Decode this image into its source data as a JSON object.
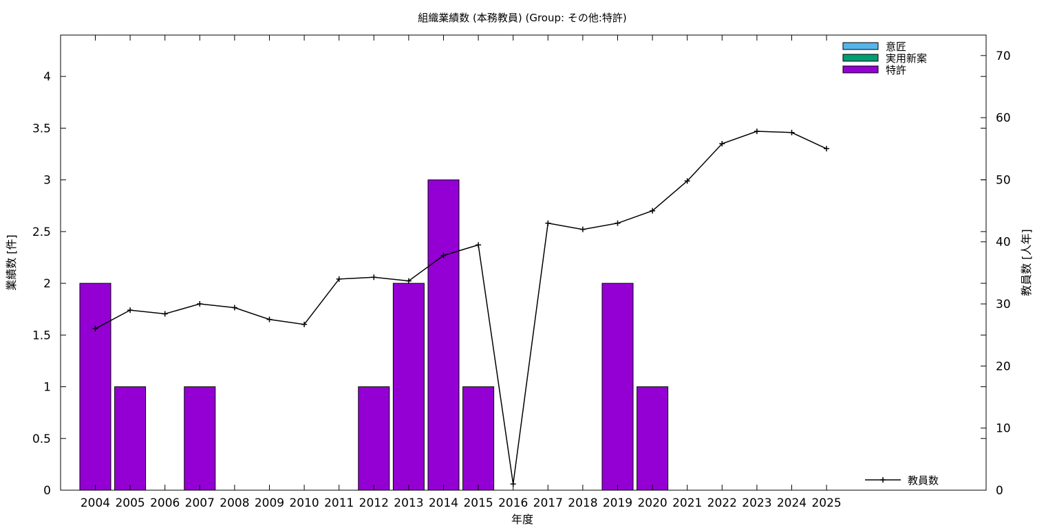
{
  "chart_data": {
    "type": "bar",
    "title": "組織業績数 (本務教員) (Group: その他:特許)",
    "xlabel": "年度",
    "ylabel": "業績数 [件]",
    "y2label": "教員数 [人年]",
    "categories": [
      "2004",
      "2005",
      "2006",
      "2007",
      "2008",
      "2009",
      "2010",
      "2011",
      "2012",
      "2013",
      "2014",
      "2015",
      "2016",
      "2017",
      "2018",
      "2019",
      "2020",
      "2021",
      "2022",
      "2023",
      "2024",
      "2025"
    ],
    "ylim": [
      0,
      4.4
    ],
    "yticks": [
      "0",
      "0.5",
      "1",
      "1.5",
      "2",
      "2.5",
      "3",
      "3.5",
      "4"
    ],
    "y2lim": [
      0,
      73.3
    ],
    "y2ticks": [
      "0",
      "10",
      "20",
      "30",
      "40",
      "50",
      "60",
      "70"
    ],
    "stacked": true,
    "series": [
      {
        "name": "意匠",
        "color": "#56b4e9",
        "values": [
          0,
          0,
          0,
          0,
          0,
          0,
          0,
          0,
          0,
          0,
          0,
          0,
          0,
          0,
          0,
          0,
          0,
          0,
          0,
          0,
          0,
          0
        ]
      },
      {
        "name": "実用新案",
        "color": "#009e73",
        "values": [
          0,
          0,
          0,
          0,
          0,
          0,
          0,
          0,
          0,
          0,
          0,
          0,
          0,
          0,
          0,
          0,
          0,
          0,
          0,
          0,
          0,
          0
        ]
      },
      {
        "name": "特許",
        "color": "#9400d3",
        "values": [
          2,
          1,
          0,
          1,
          0,
          0,
          0,
          0,
          1,
          2,
          3,
          1,
          0,
          0,
          0,
          2,
          1,
          0,
          0,
          0,
          0,
          0
        ]
      }
    ],
    "line_series": {
      "name": "教員数",
      "axis": "y2",
      "color": "#000000",
      "values": [
        26,
        29,
        28.4,
        30,
        29.4,
        27.5,
        26.7,
        34,
        34.3,
        33.7,
        37.8,
        39.5,
        1,
        43,
        42,
        43,
        45,
        49.8,
        55.8,
        57.8,
        57.6,
        55
      ]
    },
    "grid": false,
    "legend_position": "top-right"
  }
}
